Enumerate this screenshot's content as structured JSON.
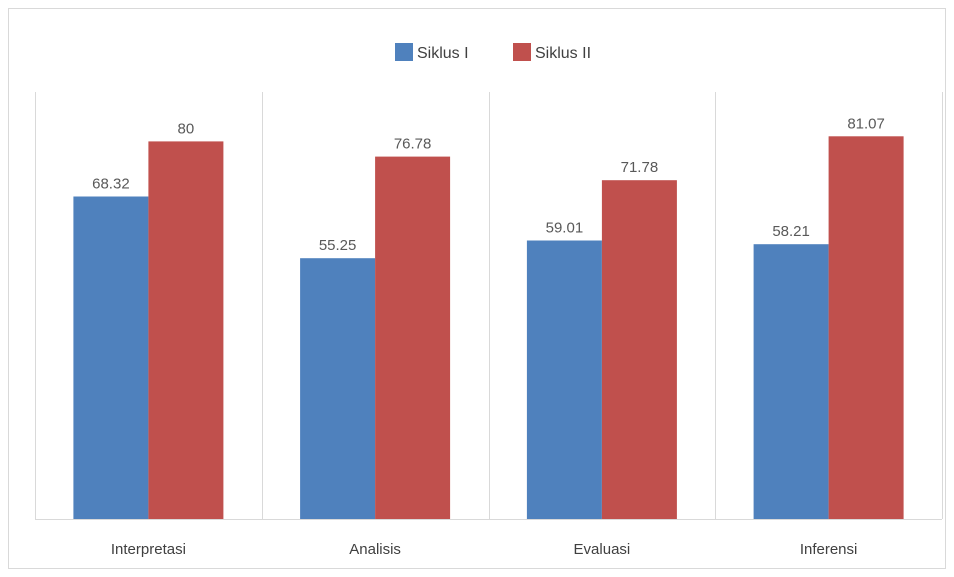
{
  "chart_data": {
    "type": "bar",
    "categories": [
      "Interpretasi",
      "Analisis",
      "Evaluasi",
      "Inferensi"
    ],
    "series": [
      {
        "name": "Siklus I",
        "values": [
          68.32,
          55.25,
          59.01,
          58.21
        ],
        "color": "#4f81bd"
      },
      {
        "name": "Siklus II",
        "values": [
          80,
          76.78,
          71.78,
          81.07
        ],
        "color": "#c0504d"
      }
    ],
    "data_labels": [
      [
        "68.32",
        "55.25",
        "59.01",
        "58.21"
      ],
      [
        "80",
        "76.78",
        "71.78",
        "81.07"
      ]
    ],
    "title": "",
    "xlabel": "",
    "ylabel": "",
    "ylim": [
      0,
      100
    ],
    "grid": "vertical category separators",
    "legend": "top-center"
  }
}
